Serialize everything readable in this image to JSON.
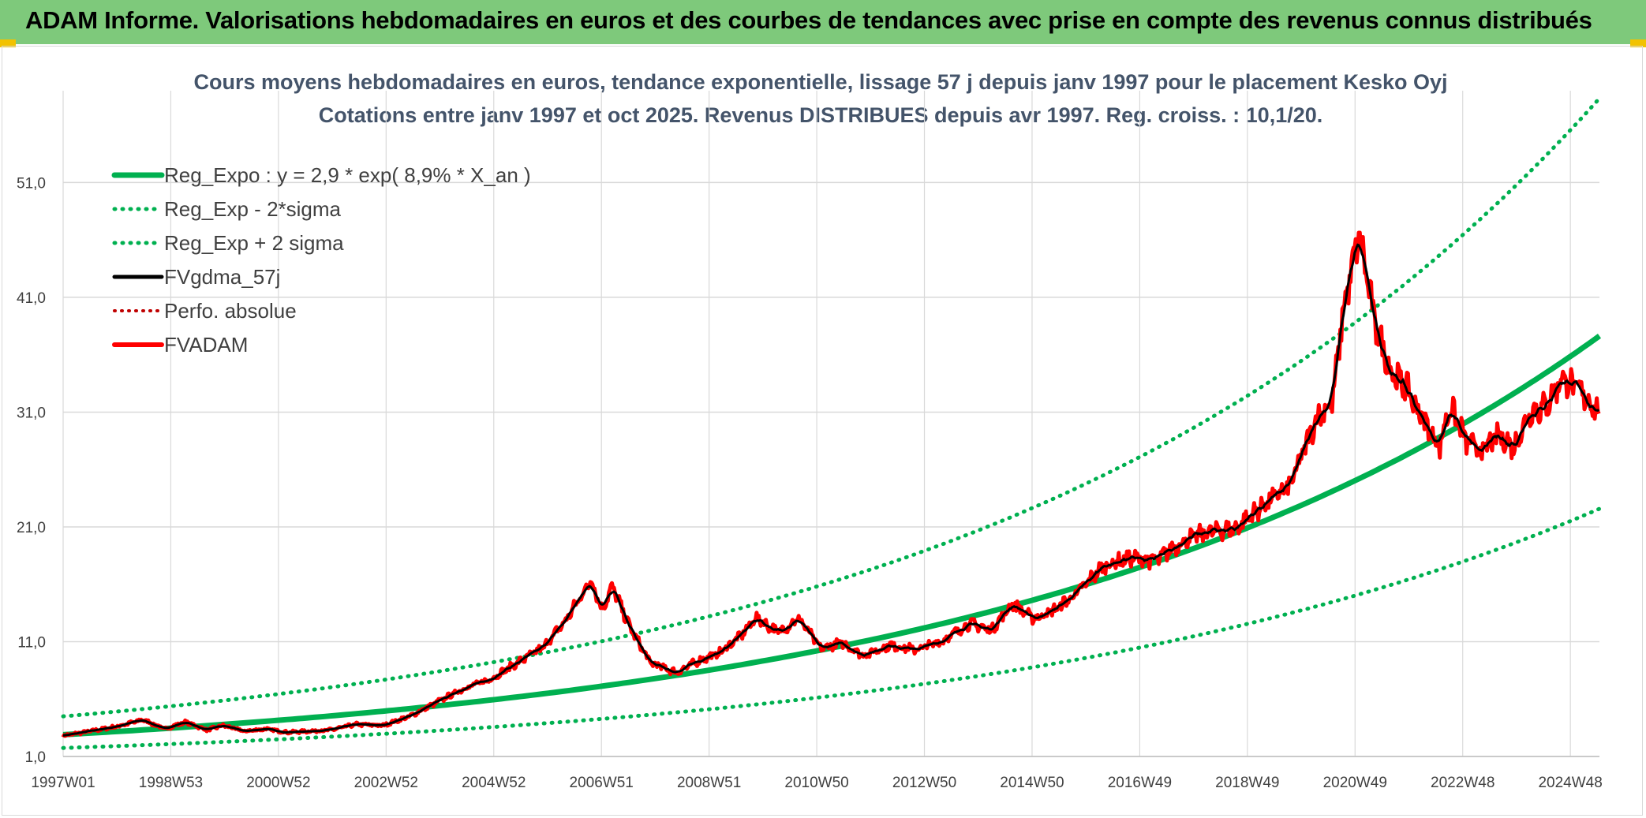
{
  "banner": {
    "title": "ADAM Informe. Valorisations hebdomadaires en euros et des courbes de tendances avec prise en compte des revenus connus distribués"
  },
  "colors": {
    "banner_bg": "#7ec97b",
    "reg_expo": "#00b050",
    "band": "#00b050",
    "fvgdma": "#000000",
    "fvadam": "#ff0000",
    "perfo": "#c00000",
    "grid": "#d9d9d9"
  },
  "chart_data": {
    "type": "line",
    "title": "Cours moyens hebdomadaires en euros, tendance exponentielle, lissage 57 j depuis janv 1997 pour le placement Kesko Oyj",
    "subtitle": "Cotations entre janv 1997 et oct 2025. Revenus DISTRIBUES depuis avr 1997. Reg. croiss. : 10,1/20.",
    "xlabel": "",
    "ylabel": "",
    "x_ticks": [
      "1997W01",
      "1998W53",
      "2000W52",
      "2002W52",
      "2004W52",
      "2006W51",
      "2008W51",
      "2010W50",
      "2012W50",
      "2014W50",
      "2016W49",
      "2018W49",
      "2020W49",
      "2022W48",
      "2024W48"
    ],
    "x_range": [
      1997.0,
      2025.8
    ],
    "y_ticks": [
      "1,0",
      "11,0",
      "21,0",
      "31,0",
      "41,0",
      "51,0"
    ],
    "ylim": [
      1.0,
      59.0
    ],
    "grid": true,
    "legend_position": "top-left",
    "series": [
      {
        "name": "Reg_Expo : y = 2,9 * exp( 8,9% *  X_an )",
        "style": "solid-thick",
        "color": "#00b050",
        "model": {
          "a": 2.9,
          "rate": 0.089,
          "x0": 1997.0
        }
      },
      {
        "name": "Reg_Exp - 2*sigma",
        "style": "dotted",
        "color": "#00b050",
        "model": {
          "a": 2.9,
          "rate": 0.089,
          "factor": 0.6
        }
      },
      {
        "name": "Reg_Exp + 2 sigma",
        "style": "dotted",
        "color": "#00b050",
        "model": {
          "a": 2.9,
          "rate": 0.089,
          "factor": 1.55
        }
      },
      {
        "name": "FVgdma_57j",
        "style": "solid",
        "color": "#000000",
        "smoothing_of": "FVADAM"
      },
      {
        "name": "Perfo. absolue",
        "style": "dotted",
        "color": "#c00000",
        "values": []
      },
      {
        "name": "FVADAM",
        "style": "solid-thick",
        "color": "#ff0000",
        "x": [
          1997.0,
          1997.5,
          1998.0,
          1998.5,
          1998.9,
          1999.3,
          1999.7,
          2000.0,
          2000.4,
          2000.8,
          2001.2,
          2001.6,
          2002.0,
          2002.5,
          2003.0,
          2003.5,
          2004.0,
          2004.5,
          2005.0,
          2005.5,
          2006.0,
          2006.4,
          2006.7,
          2006.9,
          2007.1,
          2007.3,
          2007.6,
          2008.0,
          2008.5,
          2008.9,
          2009.3,
          2009.7,
          2010.0,
          2010.4,
          2010.8,
          2011.2,
          2011.6,
          2012.0,
          2012.5,
          2013.0,
          2013.5,
          2014.0,
          2014.4,
          2014.8,
          2015.2,
          2015.6,
          2016.0,
          2016.5,
          2017.0,
          2017.5,
          2018.0,
          2018.5,
          2019.0,
          2019.5,
          2020.0,
          2020.5,
          2020.8,
          2021.0,
          2021.3,
          2021.6,
          2021.9,
          2022.2,
          2022.5,
          2022.8,
          2023.0,
          2023.3,
          2023.6,
          2023.9,
          2024.2,
          2024.5,
          2024.8,
          2025.1,
          2025.4,
          2025.8
        ],
        "values": [
          2.8,
          3.2,
          3.6,
          4.2,
          3.4,
          4.0,
          3.3,
          3.7,
          3.2,
          3.4,
          3.1,
          3.2,
          3.3,
          3.8,
          3.7,
          4.5,
          5.7,
          6.9,
          7.7,
          9.1,
          10.5,
          12.7,
          14.9,
          16.4,
          13.8,
          15.8,
          12.5,
          9.2,
          8.3,
          9.3,
          10.0,
          11.5,
          13.1,
          11.8,
          13.0,
          10.4,
          10.9,
          9.8,
          10.7,
          10.3,
          11.1,
          12.6,
          12.0,
          14.3,
          13.0,
          13.8,
          15.2,
          17.6,
          18.3,
          18.1,
          19.8,
          20.6,
          20.9,
          22.9,
          24.6,
          30.5,
          32.0,
          40.0,
          46.5,
          38.5,
          34.5,
          33.0,
          30.3,
          28.0,
          31.5,
          28.5,
          27.5,
          29.0,
          28.0,
          31.0,
          31.5,
          34.0,
          33.0,
          31.0
        ]
      }
    ]
  }
}
